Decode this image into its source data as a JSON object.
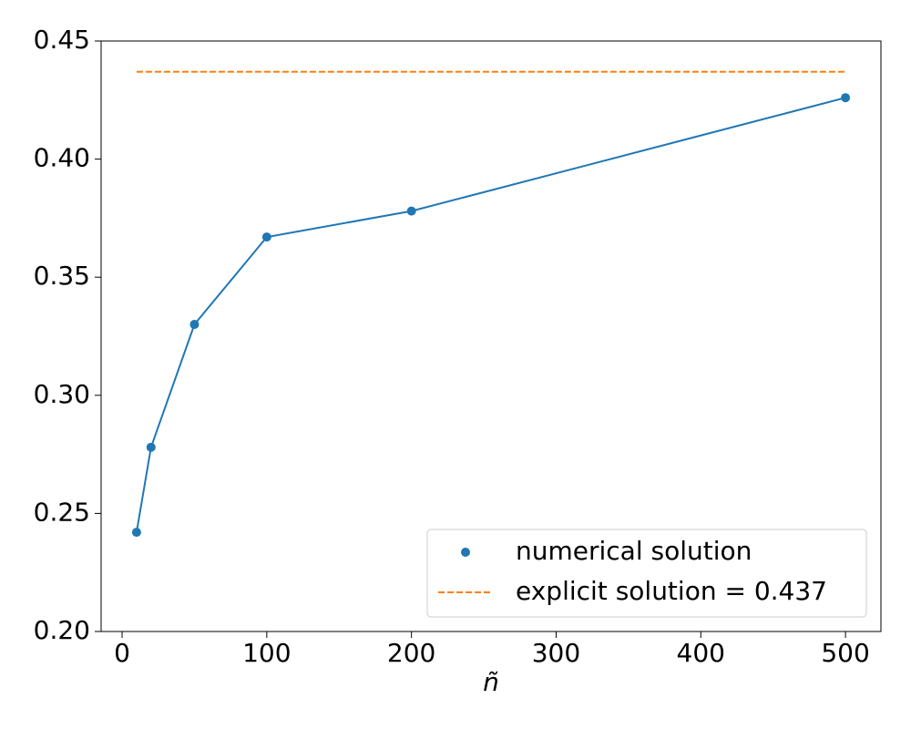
{
  "chart_data": {
    "type": "line",
    "x_label": "ñ",
    "xlim": [
      -14.5,
      524.5
    ],
    "xticks": [
      0,
      100,
      200,
      300,
      400,
      500
    ],
    "ylim": [
      0.2,
      0.45
    ],
    "yticks": [
      {
        "value": 0.2,
        "label": "0.20"
      },
      0.25,
      {
        "value": 0.3,
        "label": "0.30"
      },
      0.35,
      {
        "value": 0.4,
        "label": "0.40"
      },
      0.45
    ],
    "legend": "lower right",
    "series": [
      {
        "name": "numerical solution",
        "color": "#1f77b4",
        "style": "solid",
        "marker": true,
        "x": [
          10,
          20,
          50,
          100,
          200,
          500
        ],
        "values": [
          0.242,
          0.278,
          0.33,
          0.367,
          0.378,
          0.426
        ]
      },
      {
        "name": "explicit solution = 0.437",
        "color": "#ff7f0e",
        "style": "dashed",
        "marker": false,
        "x": [
          10,
          500
        ],
        "values": [
          0.437,
          0.437
        ]
      }
    ]
  }
}
